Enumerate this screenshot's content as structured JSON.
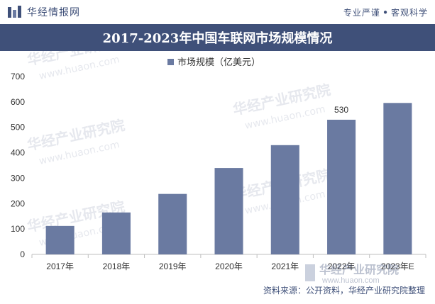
{
  "header": {
    "brand_name": "华经情报网",
    "slogan_left": "专业严谨",
    "slogan_sep": "●",
    "slogan_right": "客观科学"
  },
  "watermark": {
    "text_cn": "华经产业研究院",
    "text_url": "www.huaon.com"
  },
  "source_note": "资料来源：公开资料，华经产业研究院整理",
  "colors": {
    "brand": "#3f5079",
    "bar": "#6a7aa1",
    "grid": "#e6e6e6",
    "axis_text": "#333333"
  },
  "chart_data": {
    "type": "bar",
    "title": "2017-2023年中国车联网市场规模情况",
    "legend": "市场规模（亿美元）",
    "legend_position": "top-center",
    "categories": [
      "2017年",
      "2018年",
      "2019年",
      "2020年",
      "2021年",
      "2022年",
      "2023年E"
    ],
    "series": [
      {
        "name": "市场规模（亿美元）",
        "values": [
          112,
          165,
          238,
          340,
          430,
          530,
          596
        ]
      }
    ],
    "labels": {
      "5": "530"
    },
    "ylim": [
      0,
      700
    ],
    "yticks": [
      0,
      100,
      200,
      300,
      400,
      500,
      600,
      700
    ],
    "grid": false
  }
}
